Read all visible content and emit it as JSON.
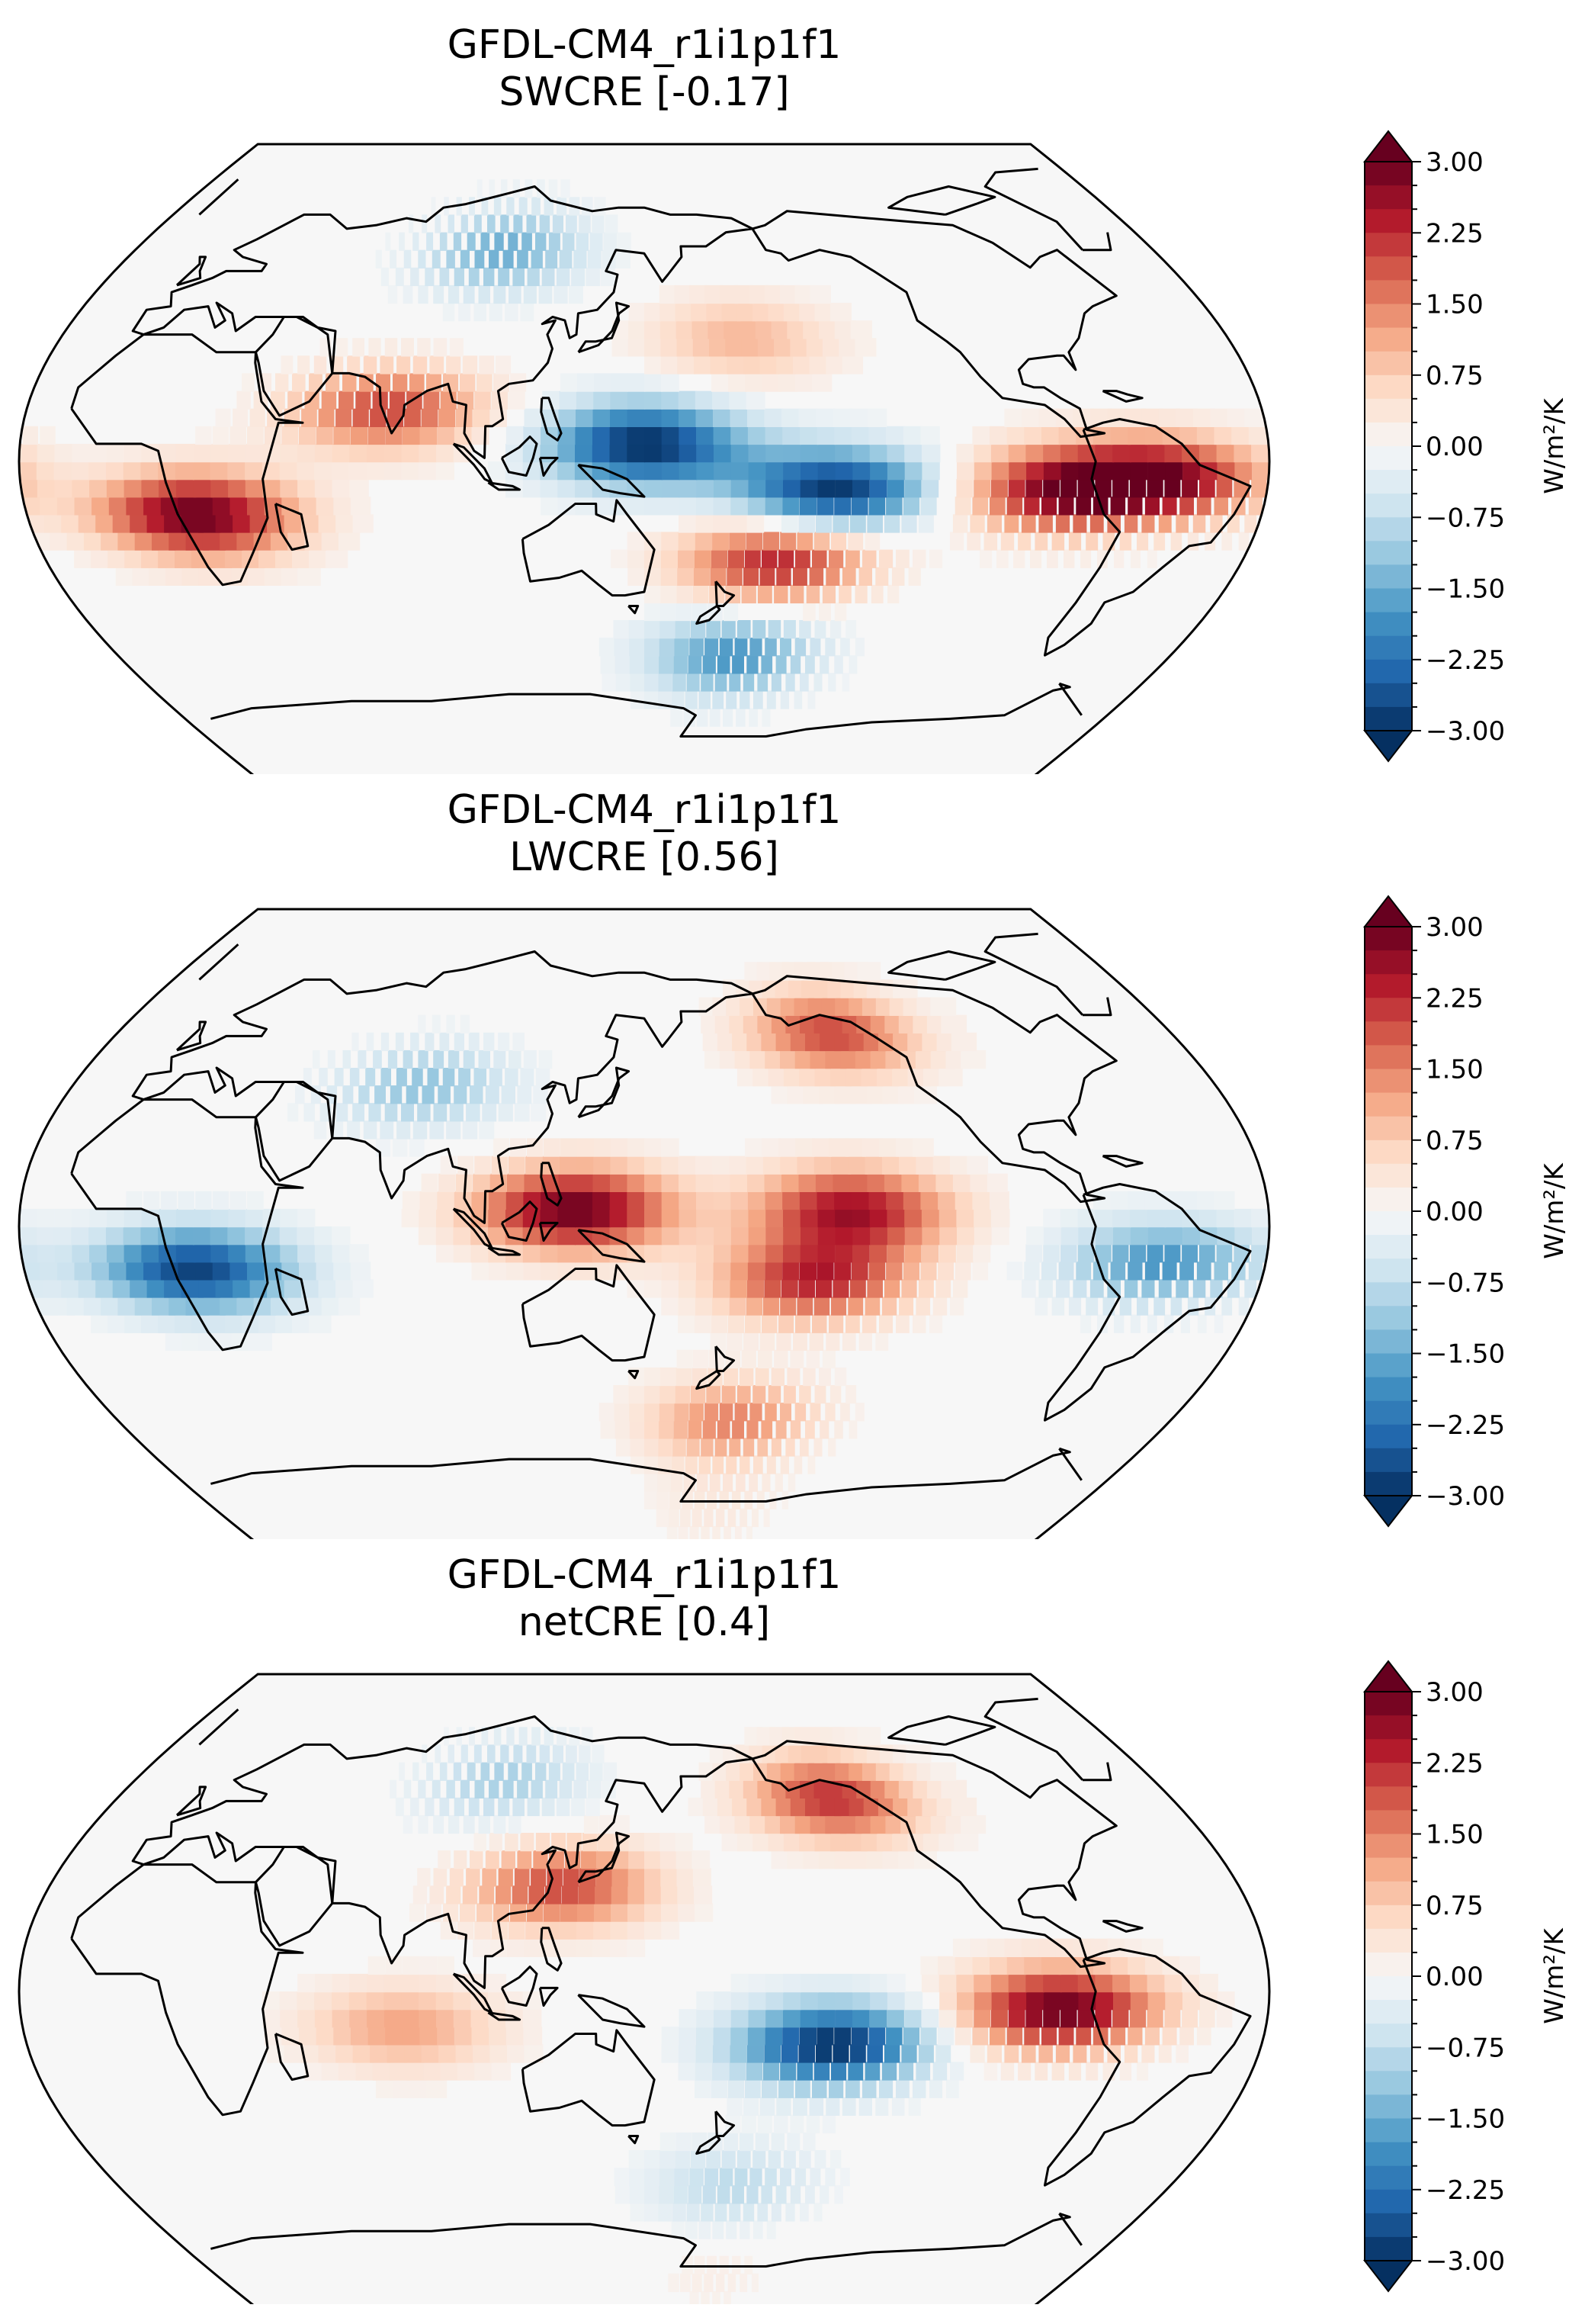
{
  "figure": {
    "colormap": "RdBu_r"
  },
  "colorbar": {
    "unit_text": "W/m²/K",
    "tick_labels": [
      "3.00",
      "2.25",
      "1.50",
      "0.75",
      "0.00",
      "−0.75",
      "−1.50",
      "−2.25",
      "−3.00"
    ],
    "range": [
      -3.0,
      3.0
    ],
    "levels_step": 0.25,
    "extend": "both",
    "colors": [
      "#053061",
      "#2166ac",
      "#4393c3",
      "#92c5de",
      "#d1e5f0",
      "#f7f7f7",
      "#fddbc7",
      "#f4a582",
      "#d6604d",
      "#b2182b",
      "#67001f"
    ]
  },
  "chart_data": [
    {
      "type": "heatmap",
      "projection": "Robinson (Pacific-centred)",
      "title_line1": "GFDL-CM4_r1i1p1f1",
      "title_line2": "SWCRE [-0.17]",
      "variable": "SWCRE",
      "global_mean": -0.17,
      "colorbar_label": "W/m²/K",
      "value_range": [
        -3.0,
        3.0
      ],
      "regions": [
        {
          "name": "Tropical West Pacific / Maritime Continent",
          "lon": 150,
          "lat": 5,
          "value": -3.0
        },
        {
          "name": "Central Pacific south band",
          "lon": 205,
          "lat": -8,
          "value": -3.0
        },
        {
          "name": "Southern Africa",
          "lon": 20,
          "lat": -15,
          "value": 3.0
        },
        {
          "name": "Amazon",
          "lon": 300,
          "lat": -5,
          "value": 2.6
        },
        {
          "name": "East Pacific off Peru",
          "lon": 270,
          "lat": -8,
          "value": 2.5
        },
        {
          "name": "South Pacific subtropics",
          "lon": 190,
          "lat": -28,
          "value": 2.4
        },
        {
          "name": "Arabian Sea / India",
          "lon": 75,
          "lat": 15,
          "value": 2.0
        },
        {
          "name": "North Pacific",
          "lon": 180,
          "lat": 35,
          "value": 1.0
        },
        {
          "name": "Southern Ocean",
          "lon": 180,
          "lat": -55,
          "value": -1.8
        },
        {
          "name": "Siberia",
          "lon": 100,
          "lat": 60,
          "value": -1.5
        },
        {
          "name": "Antarctica",
          "lon": 180,
          "lat": -80,
          "value": 0.0
        }
      ]
    },
    {
      "type": "heatmap",
      "projection": "Robinson (Pacific-centred)",
      "title_line1": "GFDL-CM4_r1i1p1f1",
      "title_line2": "LWCRE [0.56]",
      "variable": "LWCRE",
      "global_mean": 0.56,
      "colorbar_label": "W/m²/K",
      "value_range": [
        -3.0,
        3.0
      ],
      "regions": [
        {
          "name": "Maritime Continent",
          "lon": 130,
          "lat": 5,
          "value": 3.0
        },
        {
          "name": "Central Pacific ITCZ",
          "lon": 210,
          "lat": 5,
          "value": 2.5
        },
        {
          "name": "South Pacific band",
          "lon": 200,
          "lat": -15,
          "value": 2.3
        },
        {
          "name": "Gulf of Alaska",
          "lon": 215,
          "lat": 55,
          "value": 2.0
        },
        {
          "name": "Southern Africa",
          "lon": 20,
          "lat": -12,
          "value": -2.8
        },
        {
          "name": "South America",
          "lon": 300,
          "lat": -10,
          "value": -1.8
        },
        {
          "name": "Central Asia",
          "lon": 80,
          "lat": 40,
          "value": -1.2
        },
        {
          "name": "Southern Ocean",
          "lon": 180,
          "lat": -55,
          "value": 1.5
        },
        {
          "name": "Antarctica",
          "lon": 180,
          "lat": -80,
          "value": 0.3
        }
      ]
    },
    {
      "type": "heatmap",
      "projection": "Robinson (Pacific-centred)",
      "title_line1": "GFDL-CM4_r1i1p1f1",
      "title_line2": "netCRE [0.4]",
      "variable": "netCRE",
      "global_mean": 0.4,
      "colorbar_label": "W/m²/K",
      "value_range": [
        -3.0,
        3.0
      ],
      "regions": [
        {
          "name": "East Pacific off Peru",
          "lon": 270,
          "lat": -5,
          "value": 3.0
        },
        {
          "name": "Central South Pacific",
          "lon": 205,
          "lat": -15,
          "value": -3.0
        },
        {
          "name": "East Asia",
          "lon": 125,
          "lat": 30,
          "value": 2.0
        },
        {
          "name": "Gulf of Alaska",
          "lon": 215,
          "lat": 55,
          "value": 2.2
        },
        {
          "name": "Indian Ocean",
          "lon": 80,
          "lat": -10,
          "value": 1.2
        },
        {
          "name": "Siberia",
          "lon": 100,
          "lat": 60,
          "value": -1.0
        },
        {
          "name": "Southern Ocean",
          "lon": 180,
          "lat": -55,
          "value": -0.8
        },
        {
          "name": "Antarctica",
          "lon": 180,
          "lat": -80,
          "value": 0.2
        }
      ]
    }
  ]
}
